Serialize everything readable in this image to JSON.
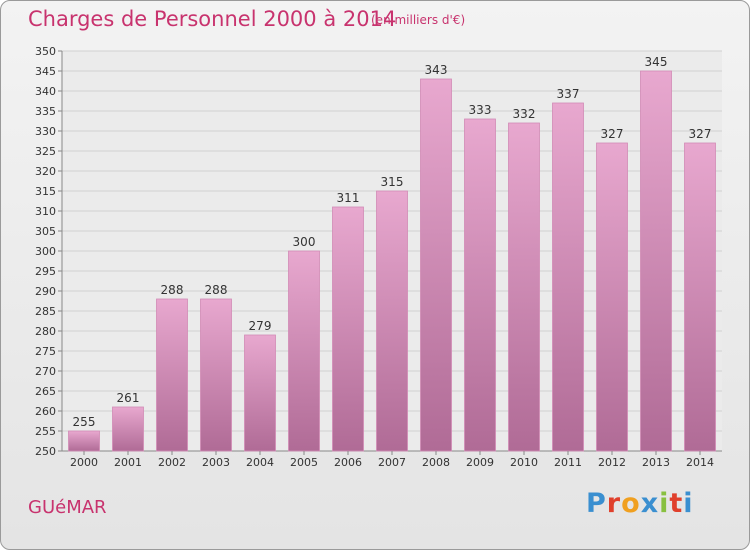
{
  "title": "Charges de Personnel 2000 à 2014",
  "subtitle": "(en milliers d'€)",
  "town": "GUéMAR",
  "logo": {
    "letters": [
      "P",
      "r",
      "o",
      "x",
      "i",
      "t",
      "i"
    ],
    "colors": [
      "#3a8fd0",
      "#e0402c",
      "#f0a020",
      "#3a8fd0",
      "#88c040",
      "#e0402c",
      "#3a8fd0"
    ]
  },
  "colors": {
    "bar_top": "#e8a8cf",
    "bar_bottom": "#b06b96",
    "accent": "#c8336e"
  },
  "chart_data": {
    "type": "bar",
    "title": "Charges de Personnel 2000 à 2014",
    "subtitle": "(en milliers d'€)",
    "categories": [
      "2000",
      "2001",
      "2002",
      "2003",
      "2004",
      "2005",
      "2006",
      "2007",
      "2008",
      "2009",
      "2010",
      "2011",
      "2012",
      "2013",
      "2014"
    ],
    "values": [
      255,
      261,
      288,
      288,
      279,
      300,
      311,
      315,
      343,
      333,
      332,
      337,
      327,
      345,
      327
    ],
    "ylim": [
      250,
      350
    ],
    "yticks": [
      250,
      255,
      260,
      265,
      270,
      275,
      280,
      285,
      290,
      295,
      300,
      305,
      310,
      315,
      320,
      325,
      330,
      335,
      340,
      345,
      350
    ],
    "grid": true,
    "legend": "none"
  }
}
